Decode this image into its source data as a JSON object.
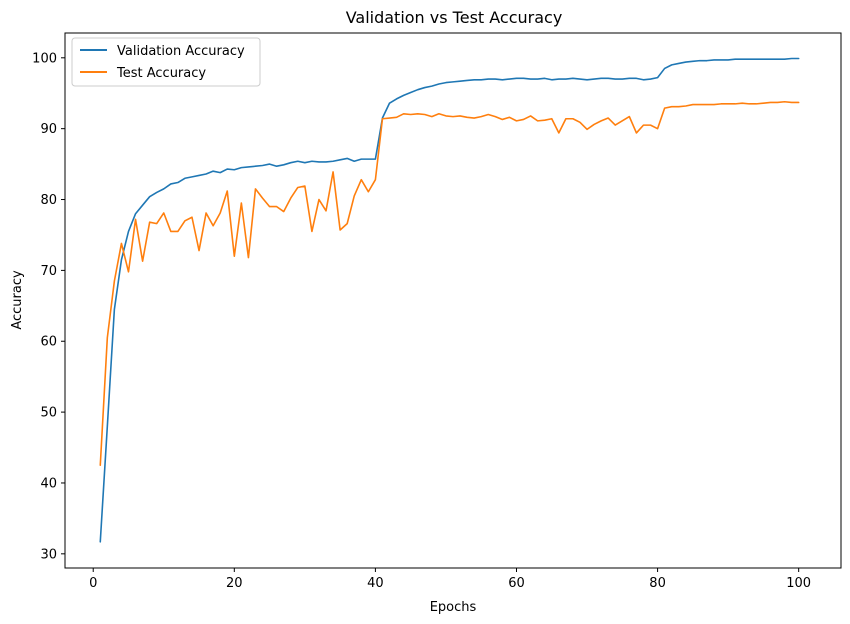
{
  "chart_data": {
    "type": "line",
    "title": "Validation vs Test Accuracy",
    "xlabel": "Epochs",
    "ylabel": "Accuracy",
    "xlim": [
      -4,
      106
    ],
    "ylim": [
      28,
      103.5
    ],
    "xticks": [
      0,
      20,
      40,
      60,
      80,
      100
    ],
    "yticks": [
      30,
      40,
      50,
      60,
      70,
      80,
      90,
      100
    ],
    "grid": false,
    "legend_position": "top-left",
    "x": [
      1,
      2,
      3,
      4,
      5,
      6,
      7,
      8,
      9,
      10,
      11,
      12,
      13,
      14,
      15,
      16,
      17,
      18,
      19,
      20,
      21,
      22,
      23,
      24,
      25,
      26,
      27,
      28,
      29,
      30,
      31,
      32,
      33,
      34,
      35,
      36,
      37,
      38,
      39,
      40,
      41,
      42,
      43,
      44,
      45,
      46,
      47,
      48,
      49,
      50,
      51,
      52,
      53,
      54,
      55,
      56,
      57,
      58,
      59,
      60,
      61,
      62,
      63,
      64,
      65,
      66,
      67,
      68,
      69,
      70,
      71,
      72,
      73,
      74,
      75,
      76,
      77,
      78,
      79,
      80,
      81,
      82,
      83,
      84,
      85,
      86,
      87,
      88,
      89,
      90,
      91,
      92,
      93,
      94,
      95,
      96,
      97,
      98,
      99,
      100
    ],
    "series": [
      {
        "name": "Validation Accuracy",
        "color": "#1f77b4",
        "values": [
          31.7,
          48.0,
          64.5,
          71.5,
          75.5,
          78.0,
          79.2,
          80.4,
          81.0,
          81.5,
          82.2,
          82.4,
          83.0,
          83.2,
          83.4,
          83.6,
          84.0,
          83.8,
          84.3,
          84.2,
          84.5,
          84.6,
          84.7,
          84.8,
          85.0,
          84.7,
          84.9,
          85.2,
          85.4,
          85.2,
          85.4,
          85.3,
          85.3,
          85.4,
          85.6,
          85.8,
          85.4,
          85.7,
          85.7,
          85.7,
          91.5,
          93.6,
          94.2,
          94.7,
          95.1,
          95.5,
          95.8,
          96.0,
          96.3,
          96.5,
          96.6,
          96.7,
          96.8,
          96.9,
          96.9,
          97.0,
          97.0,
          96.9,
          97.0,
          97.1,
          97.1,
          97.0,
          97.0,
          97.1,
          96.9,
          97.0,
          97.0,
          97.1,
          97.0,
          96.9,
          97.0,
          97.1,
          97.1,
          97.0,
          97.0,
          97.1,
          97.1,
          96.9,
          97.0,
          97.2,
          98.5,
          99.0,
          99.2,
          99.4,
          99.5,
          99.6,
          99.6,
          99.7,
          99.7,
          99.7,
          99.8,
          99.8,
          99.8,
          99.8,
          99.8,
          99.8,
          99.8,
          99.8,
          99.9,
          99.9
        ]
      },
      {
        "name": "Test Accuracy",
        "color": "#ff7f0e",
        "values": [
          42.5,
          60.5,
          68.5,
          73.8,
          69.8,
          77.2,
          71.3,
          76.8,
          76.6,
          78.1,
          75.5,
          75.5,
          77.0,
          77.5,
          72.8,
          78.1,
          76.3,
          78.1,
          81.2,
          72.0,
          79.5,
          71.8,
          81.5,
          80.2,
          79.0,
          79.0,
          78.3,
          80.2,
          81.7,
          81.9,
          75.5,
          80.0,
          78.4,
          83.9,
          75.7,
          76.6,
          80.5,
          82.8,
          81.1,
          82.8,
          91.4,
          91.5,
          91.6,
          92.1,
          92.0,
          92.1,
          92.0,
          91.7,
          92.1,
          91.8,
          91.7,
          91.8,
          91.6,
          91.5,
          91.7,
          92.0,
          91.7,
          91.3,
          91.6,
          91.1,
          91.3,
          91.8,
          91.1,
          91.2,
          91.4,
          89.4,
          91.4,
          91.4,
          90.9,
          89.9,
          90.6,
          91.1,
          91.5,
          90.5,
          91.1,
          91.7,
          89.4,
          90.5,
          90.5,
          90.0,
          92.9,
          93.1,
          93.1,
          93.2,
          93.4,
          93.4,
          93.4,
          93.4,
          93.5,
          93.5,
          93.5,
          93.6,
          93.5,
          93.5,
          93.6,
          93.7,
          93.7,
          93.8,
          93.7,
          93.7
        ]
      }
    ]
  }
}
